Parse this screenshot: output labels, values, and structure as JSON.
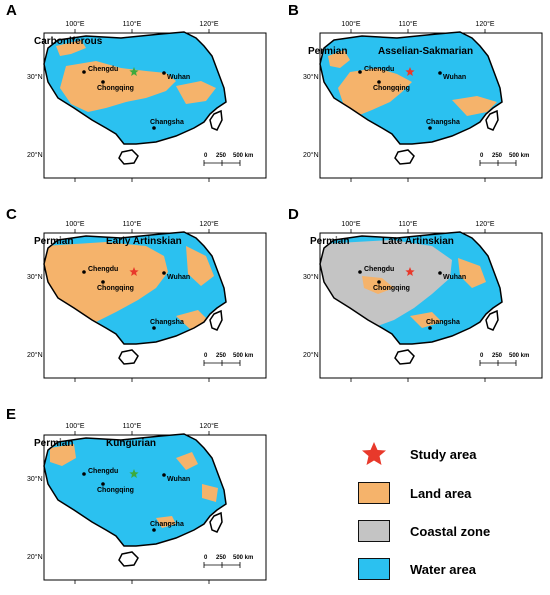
{
  "colors": {
    "land": "#F5B36B",
    "coastal": "#C4C4C4",
    "water": "#2BC1F0",
    "star_red": "#E8392B",
    "star_green": "#3DAA3D"
  },
  "panels": [
    {
      "letter": "A",
      "period": "",
      "stage": "Carboniferous"
    },
    {
      "letter": "B",
      "period": "Permian",
      "stage": "Asselian-Sakmarian"
    },
    {
      "letter": "C",
      "period": "Permian",
      "stage": "Early Artinskian"
    },
    {
      "letter": "D",
      "period": "Permian",
      "stage": "Late Artinskian"
    },
    {
      "letter": "E",
      "period": "Permian",
      "stage": "Kungurian"
    }
  ],
  "axes": {
    "lon": [
      "100°E",
      "110°E",
      "120°E"
    ],
    "lat": [
      "30°N",
      "20°N"
    ]
  },
  "cities": [
    "Chengdu",
    "Chongqing",
    "Wuhan",
    "Changsha"
  ],
  "scale": [
    "0",
    "250",
    "500 km"
  ],
  "legend": {
    "study_area": "Study area",
    "land_area": "Land area",
    "coastal_zone": "Coastal zone",
    "water_area": "Water area"
  }
}
